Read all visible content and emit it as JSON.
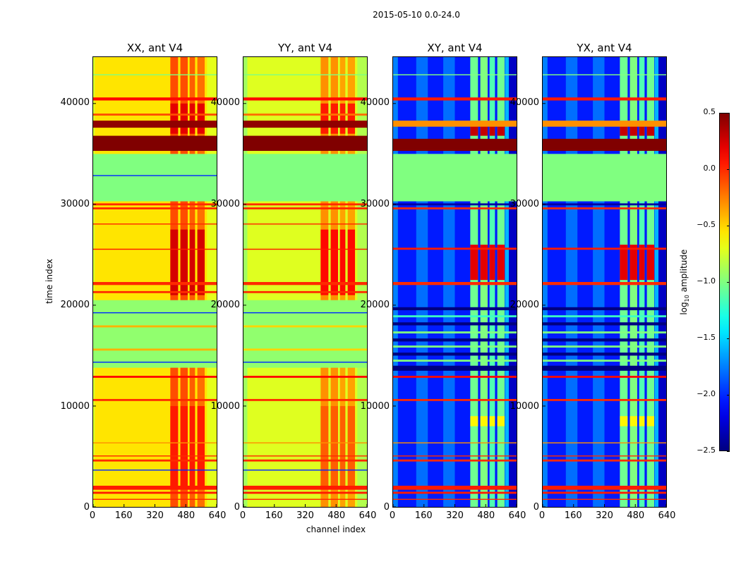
{
  "title": "2015-05-10 0.0-24.0",
  "chart_data": {
    "type": "heatmap",
    "title": "2015-05-10 0.0-24.0",
    "xlabel": "channel index",
    "ylabel": "time index",
    "xlim": [
      0,
      640
    ],
    "ylim": [
      0,
      44600
    ],
    "xticks": [
      "0",
      "160",
      "320",
      "480",
      "640"
    ],
    "xtick_values": [
      0,
      160,
      320,
      480,
      640
    ],
    "yticks": [
      "0",
      "10000",
      "20000",
      "30000",
      "40000"
    ],
    "ytick_values": [
      0,
      10000,
      20000,
      30000,
      40000
    ],
    "colormap": "jet",
    "colorbar": {
      "label_main": "log",
      "label_sub": "10",
      "label_rest": " amplitude",
      "range": [
        -2.5,
        0.5
      ],
      "ticks": [
        "0.5",
        "0.0",
        "−0.5",
        "−1.0",
        "−1.5",
        "−2.0",
        "−2.5"
      ],
      "tick_values": [
        0.5,
        0.0,
        -0.5,
        -1.0,
        -1.5,
        -2.0,
        -2.5
      ]
    },
    "panels": [
      {
        "title": "XX, ant V4",
        "base": -0.55,
        "columns": [
          [
            0,
            8,
            -0.75
          ],
          [
            400,
            440,
            -0.1
          ],
          [
            452,
            490,
            -0.1
          ],
          [
            500,
            528,
            -0.15
          ],
          [
            540,
            578,
            -0.2
          ],
          [
            590,
            640,
            -0.7
          ]
        ],
        "patches": [
          [
            400,
            580,
            21000,
            27500,
            0.25
          ],
          [
            400,
            580,
            2000,
            10000,
            0.05
          ],
          [
            400,
            580,
            37000,
            40000,
            0.2
          ]
        ],
        "bands": [
          [
            30300,
            35000,
            -1.0
          ],
          [
            13800,
            20500,
            -0.95
          ],
          [
            35300,
            36800,
            0.5
          ],
          [
            37600,
            38300,
            0.45
          ],
          [
            40300,
            40600,
            0.1
          ],
          [
            38800,
            39000,
            -0.1
          ],
          [
            42800,
            42900,
            -1.0
          ],
          [
            29500,
            29700,
            0.0
          ],
          [
            29900,
            30100,
            0.0
          ],
          [
            28000,
            28100,
            0.0
          ],
          [
            22000,
            22300,
            0.0
          ],
          [
            21200,
            21400,
            0.0
          ],
          [
            25500,
            25600,
            0.05
          ],
          [
            12800,
            13000,
            0.1
          ],
          [
            10500,
            10700,
            0.0
          ],
          [
            6300,
            6400,
            -0.3
          ],
          [
            1300,
            1500,
            0.05
          ],
          [
            1700,
            2100,
            0.05
          ],
          [
            700,
            800,
            0.0
          ],
          [
            4500,
            4700,
            0.0
          ],
          [
            5000,
            5100,
            0.0
          ],
          [
            15500,
            15700,
            -0.4
          ],
          [
            17800,
            18000,
            -0.4
          ],
          [
            14300,
            14400,
            -2.0
          ],
          [
            19200,
            19300,
            -2.0
          ],
          [
            32800,
            32900,
            -2.0
          ],
          [
            3600,
            3700,
            -2.0
          ]
        ]
      },
      {
        "title": "YY, ant V4",
        "base": -0.72,
        "columns": [
          [
            0,
            20,
            -0.9
          ],
          [
            400,
            440,
            -0.3
          ],
          [
            452,
            490,
            -0.3
          ],
          [
            500,
            528,
            -0.35
          ],
          [
            540,
            578,
            -0.35
          ],
          [
            590,
            640,
            -0.85
          ]
        ],
        "patches": [
          [
            400,
            580,
            21000,
            27500,
            0.1
          ],
          [
            400,
            580,
            2000,
            10000,
            -0.15
          ],
          [
            400,
            580,
            37000,
            40000,
            0.05
          ]
        ],
        "bands": [
          [
            30300,
            35000,
            -1.0
          ],
          [
            13800,
            20500,
            -0.95
          ],
          [
            35300,
            36800,
            0.5
          ],
          [
            37600,
            38300,
            0.45
          ],
          [
            40300,
            40600,
            0.1
          ],
          [
            38800,
            39000,
            -0.2
          ],
          [
            42800,
            42900,
            -1.0
          ],
          [
            29500,
            29700,
            0.0
          ],
          [
            29900,
            30100,
            0.0
          ],
          [
            28000,
            28100,
            0.0
          ],
          [
            22000,
            22300,
            0.0
          ],
          [
            21200,
            21400,
            0.0
          ],
          [
            25500,
            25600,
            0.05
          ],
          [
            12800,
            13000,
            0.1
          ],
          [
            10500,
            10700,
            0.0
          ],
          [
            6300,
            6400,
            -0.3
          ],
          [
            1300,
            1500,
            0.05
          ],
          [
            1700,
            2100,
            0.05
          ],
          [
            700,
            800,
            0.0
          ],
          [
            4500,
            4700,
            0.0
          ],
          [
            5000,
            5100,
            0.0
          ],
          [
            15500,
            15700,
            -0.5
          ],
          [
            17800,
            18000,
            -0.5
          ],
          [
            14300,
            14400,
            -2.0
          ],
          [
            19200,
            19300,
            -2.0
          ],
          [
            3600,
            3700,
            -2.0
          ]
        ]
      },
      {
        "title": "XY, ant V4",
        "base": -2.05,
        "columns": [
          [
            0,
            25,
            -1.75
          ],
          [
            120,
            180,
            -1.8
          ],
          [
            260,
            320,
            -1.8
          ],
          [
            400,
            440,
            -1.05
          ],
          [
            452,
            490,
            -1.0
          ],
          [
            500,
            528,
            -1.15
          ],
          [
            540,
            578,
            -1.05
          ],
          [
            580,
            600,
            -1.6
          ],
          [
            600,
            640,
            -2.3
          ]
        ],
        "patches": [
          [
            400,
            580,
            22500,
            26000,
            0.2
          ],
          [
            400,
            580,
            36800,
            37800,
            0.3
          ],
          [
            400,
            580,
            8000,
            9000,
            -0.6
          ]
        ],
        "bands": [
          [
            30300,
            35000,
            -1.0
          ],
          [
            35300,
            36500,
            0.5
          ],
          [
            37700,
            38300,
            -0.3
          ],
          [
            40300,
            40600,
            0.05
          ],
          [
            42800,
            42900,
            -1.0
          ],
          [
            29500,
            29700,
            0.0
          ],
          [
            29900,
            30100,
            -2.4
          ],
          [
            22000,
            22300,
            0.0
          ],
          [
            25500,
            25700,
            0.05
          ],
          [
            13500,
            14000,
            -2.5
          ],
          [
            14400,
            14600,
            -1.0
          ],
          [
            15000,
            15300,
            -2.5
          ],
          [
            15800,
            16000,
            -1.0
          ],
          [
            16400,
            16700,
            -2.5
          ],
          [
            17200,
            17400,
            -1.0
          ],
          [
            18000,
            18300,
            -2.5
          ],
          [
            18800,
            19000,
            -1.2
          ],
          [
            19500,
            19800,
            -2.5
          ],
          [
            12800,
            13000,
            0.1
          ],
          [
            10500,
            10700,
            0.0
          ],
          [
            6300,
            6400,
            -0.3
          ],
          [
            1300,
            1500,
            0.05
          ],
          [
            1700,
            2100,
            0.05
          ],
          [
            700,
            800,
            0.0
          ],
          [
            4500,
            4700,
            0.0
          ],
          [
            5000,
            5100,
            0.0
          ]
        ]
      },
      {
        "title": "YX, ant V4",
        "base": -2.05,
        "columns": [
          [
            0,
            25,
            -1.75
          ],
          [
            120,
            180,
            -1.8
          ],
          [
            260,
            320,
            -1.8
          ],
          [
            400,
            440,
            -1.05
          ],
          [
            452,
            490,
            -1.0
          ],
          [
            500,
            528,
            -1.15
          ],
          [
            540,
            578,
            -1.05
          ],
          [
            580,
            600,
            -1.6
          ],
          [
            600,
            640,
            -2.3
          ]
        ],
        "patches": [
          [
            400,
            580,
            22500,
            26000,
            0.2
          ],
          [
            400,
            580,
            36800,
            37800,
            0.3
          ],
          [
            400,
            580,
            8000,
            9000,
            -0.6
          ]
        ],
        "bands": [
          [
            30300,
            35000,
            -1.0
          ],
          [
            35300,
            36500,
            0.5
          ],
          [
            37700,
            38300,
            -0.3
          ],
          [
            40300,
            40600,
            0.05
          ],
          [
            42800,
            42900,
            -1.0
          ],
          [
            29500,
            29700,
            0.0
          ],
          [
            29900,
            30100,
            -2.4
          ],
          [
            22000,
            22300,
            0.0
          ],
          [
            25500,
            25700,
            0.05
          ],
          [
            13500,
            14000,
            -2.5
          ],
          [
            14400,
            14600,
            -1.0
          ],
          [
            15000,
            15300,
            -2.5
          ],
          [
            15800,
            16000,
            -1.0
          ],
          [
            16400,
            16700,
            -2.5
          ],
          [
            17200,
            17400,
            -1.0
          ],
          [
            18000,
            18300,
            -2.5
          ],
          [
            18800,
            19000,
            -1.2
          ],
          [
            19500,
            19800,
            -2.5
          ],
          [
            12800,
            13000,
            0.1
          ],
          [
            10500,
            10700,
            0.0
          ],
          [
            6300,
            6400,
            -0.3
          ],
          [
            1300,
            1500,
            0.05
          ],
          [
            1700,
            2100,
            0.05
          ],
          [
            700,
            800,
            0.0
          ],
          [
            4500,
            4700,
            0.0
          ],
          [
            5000,
            5100,
            0.0
          ]
        ]
      }
    ]
  }
}
